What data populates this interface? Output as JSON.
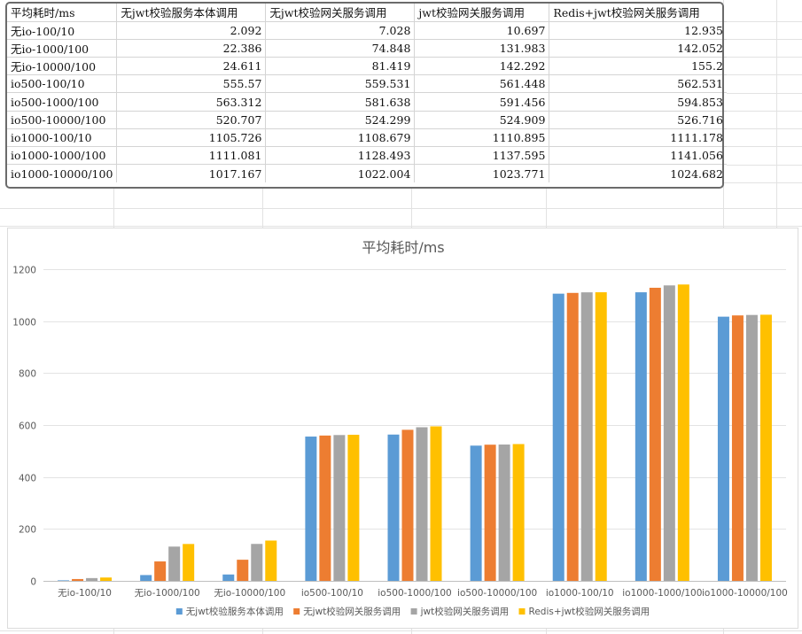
{
  "table": {
    "headers": [
      "平均耗时/ms",
      "无jwt校验服务本体调用",
      "无jwt校验网关服务调用",
      "jwt校验网关服务调用",
      "Redis+jwt校验网关服务调用"
    ],
    "rows": [
      [
        "无io-100/10",
        "2.092",
        "7.028",
        "10.697",
        "12.935"
      ],
      [
        "无io-1000/100",
        "22.386",
        "74.848",
        "131.983",
        "142.052"
      ],
      [
        "无io-10000/100",
        "24.611",
        "81.419",
        "142.292",
        "155.2"
      ],
      [
        "io500-100/10",
        "555.57",
        "559.531",
        "561.448",
        "562.531"
      ],
      [
        "io500-1000/100",
        "563.312",
        "581.638",
        "591.456",
        "594.853"
      ],
      [
        "io500-10000/100",
        "520.707",
        "524.299",
        "524.909",
        "526.716"
      ],
      [
        "io1000-100/10",
        "1105.726",
        "1108.679",
        "1110.895",
        "1111.178"
      ],
      [
        "io1000-1000/100",
        "1111.081",
        "1128.493",
        "1137.595",
        "1141.056"
      ],
      [
        "io1000-10000/100",
        "1017.167",
        "1022.004",
        "1023.771",
        "1024.682"
      ]
    ]
  },
  "chart_data": {
    "type": "bar",
    "title": "平均耗时/ms",
    "xlabel": "",
    "ylabel": "",
    "ylim": [
      0,
      1200
    ],
    "yticks": [
      0,
      200,
      400,
      600,
      800,
      1000,
      1200
    ],
    "grid": true,
    "legend": "bottom",
    "categories": [
      "无io-100/10",
      "无io-1000/100",
      "无io-10000/100",
      "io500-100/10",
      "io500-1000/100",
      "io500-10000/100",
      "io1000-100/10",
      "io1000-1000/100",
      "io1000-10000/100"
    ],
    "series": [
      {
        "name": "无jwt校验服务本体调用",
        "color": "#5b9bd5",
        "values": [
          2.092,
          22.386,
          24.611,
          555.57,
          563.312,
          520.707,
          1105.726,
          1111.081,
          1017.167
        ]
      },
      {
        "name": "无jwt校验网关服务调用",
        "color": "#ed7d31",
        "values": [
          7.028,
          74.848,
          81.419,
          559.531,
          581.638,
          524.299,
          1108.679,
          1128.493,
          1022.004
        ]
      },
      {
        "name": "jwt校验网关服务调用",
        "color": "#a5a5a5",
        "values": [
          10.697,
          131.983,
          142.292,
          561.448,
          591.456,
          524.909,
          1110.895,
          1137.595,
          1023.771
        ]
      },
      {
        "name": "Redis+jwt校验网关服务调用",
        "color": "#ffc000",
        "values": [
          12.935,
          142.052,
          155.2,
          562.531,
          594.853,
          526.716,
          1111.178,
          1141.056,
          1024.682
        ]
      }
    ]
  }
}
